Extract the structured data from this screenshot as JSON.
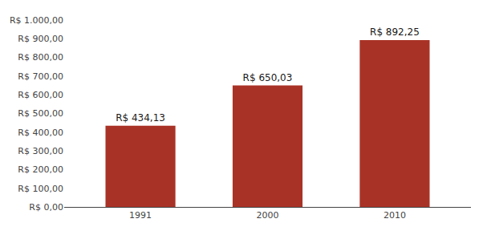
{
  "chart_data": {
    "type": "bar",
    "categories": [
      "1991",
      "2000",
      "2010"
    ],
    "values": [
      434.13,
      650.03,
      892.25
    ],
    "value_labels": [
      "R$ 434,13",
      "R$ 650,03",
      "R$ 892,25"
    ],
    "data_labels": true,
    "color": "#a93226",
    "ylim": [
      0,
      1000
    ],
    "yticks": [
      {
        "value": 0,
        "label": "R$ 0,00"
      },
      {
        "value": 100,
        "label": "R$ 100,00"
      },
      {
        "value": 200,
        "label": "R$ 200,00"
      },
      {
        "value": 300,
        "label": "R$ 300,00"
      },
      {
        "value": 400,
        "label": "R$ 400,00"
      },
      {
        "value": 500,
        "label": "R$ 500,00"
      },
      {
        "value": 600,
        "label": "R$ 600,00"
      },
      {
        "value": 700,
        "label": "R$ 700,00"
      },
      {
        "value": 800,
        "label": "R$ 800,00"
      },
      {
        "value": 900,
        "label": "R$ 900,00"
      },
      {
        "value": 1000,
        "label": "R$ 1.000,00"
      }
    ],
    "grid": false
  }
}
